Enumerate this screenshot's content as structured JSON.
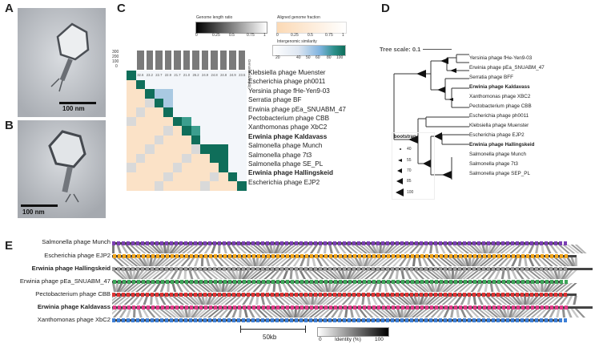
{
  "panel_labels": {
    "a": "A",
    "b": "B",
    "c": "C",
    "d": "D",
    "e": "E"
  },
  "tem": {
    "scale_a": "100 nm",
    "scale_b": "100 nm"
  },
  "panel_c": {
    "legend_length_title": "Genome length ratio",
    "legend_length_ticks": [
      "0",
      "0.25",
      "0.5",
      "0.75",
      "1"
    ],
    "legend_aligned_title": "Aligned genome fraction",
    "legend_aligned_ticks": [
      "0",
      "0.25",
      "0.5",
      "0.75",
      "1"
    ],
    "legend_intergenomic_title": "Intergenomic similarity",
    "legend_intergenomic_ticks": [
      "20",
      "40",
      "50",
      "60",
      "80",
      "100"
    ],
    "size_axis_ticks": [
      "300",
      "200",
      "100",
      "0"
    ],
    "size_axis_label": "Genome size (kb)",
    "phages": [
      {
        "name": "Klebsiella phage Muenster",
        "bold": false
      },
      {
        "name": "Escherichia phage ph0011",
        "bold": false
      },
      {
        "name": "Yersinia phage fHe-Yen9-03",
        "bold": false
      },
      {
        "name": "Serratia phage BF",
        "bold": false
      },
      {
        "name": "Erwinia phage pEa_SNUABM_47",
        "bold": false
      },
      {
        "name": "Pectobacterium phage CBB",
        "bold": false
      },
      {
        "name": "Xanthomonas phage XbC2",
        "bold": false
      },
      {
        "name": "Erwinia phage Kaldavass",
        "bold": true
      },
      {
        "name": "Salmonella phage Munch",
        "bold": false
      },
      {
        "name": "Salmonella phage 7t3",
        "bold": false
      },
      {
        "name": "Salmonella phage SE_PL",
        "bold": false
      },
      {
        "name": "Erwinia phage Hallingskeid",
        "bold": true
      },
      {
        "name": "Escherichia phage EJP2",
        "bold": false
      }
    ],
    "top_row_values": [
      "32.6",
      "23.2",
      "22.7",
      "22.9",
      "21.7",
      "21.0",
      "26.2",
      "24.9",
      "24.8",
      "24.8",
      "24.9",
      "23.5"
    ]
  },
  "panel_d": {
    "tree_scale": "Tree scale: 0.1",
    "bootstrap_title": "bootstrap",
    "bootstrap_values": [
      "40",
      "55",
      "70",
      "85",
      "100"
    ],
    "taxa": [
      {
        "name": "Yersinia phage fHe-Yen9-03",
        "bold": false
      },
      {
        "name": "Erwinia phage pEa_SNUABM_47",
        "bold": false
      },
      {
        "name": "Serratia phage BFF",
        "bold": false
      },
      {
        "name": "Erwinia phage Kaldavass",
        "bold": true
      },
      {
        "name": "Xanthomonas phage XBC2",
        "bold": false
      },
      {
        "name": "Pectobacterium phage CBB",
        "bold": false
      },
      {
        "name": "Escherichia phage ph0011",
        "bold": false
      },
      {
        "name": "Klebsiella phage Muenster",
        "bold": false
      },
      {
        "name": "Escherichia phage EJP2",
        "bold": false
      },
      {
        "name": "Erwinia phage Hallingskeid",
        "bold": true
      },
      {
        "name": "Salmonella phage Munch",
        "bold": false
      },
      {
        "name": "Salmonella phage 7t3",
        "bold": false
      },
      {
        "name": "Salmonella phage SEP_PL",
        "bold": false
      }
    ]
  },
  "panel_e": {
    "genomes": [
      {
        "name": "Salmonella phage Munch",
        "bold": false
      },
      {
        "name": "Escherichia phage EJP2",
        "bold": false
      },
      {
        "name": "Erwinia phage Hallingskeid",
        "bold": true
      },
      {
        "name": "Erwinia phage pEa_SNUABM_47",
        "bold": false
      },
      {
        "name": "Pectobacterium phage CBB",
        "bold": false
      },
      {
        "name": "Erwinia phage Kaldavass",
        "bold": true
      },
      {
        "name": "Xanthomonas phage XbC2",
        "bold": false
      }
    ],
    "scale_label": "50kb",
    "identity_label": "Identity (%)",
    "identity_min": "0",
    "identity_max": "100"
  },
  "colors": {
    "teal_dark": "#0f6e5a",
    "teal_mid": "#3c9e8e",
    "blue_light": "#a9c9e2",
    "peach": "#fbe2c7",
    "gray_bar": "#7a7a7a"
  }
}
